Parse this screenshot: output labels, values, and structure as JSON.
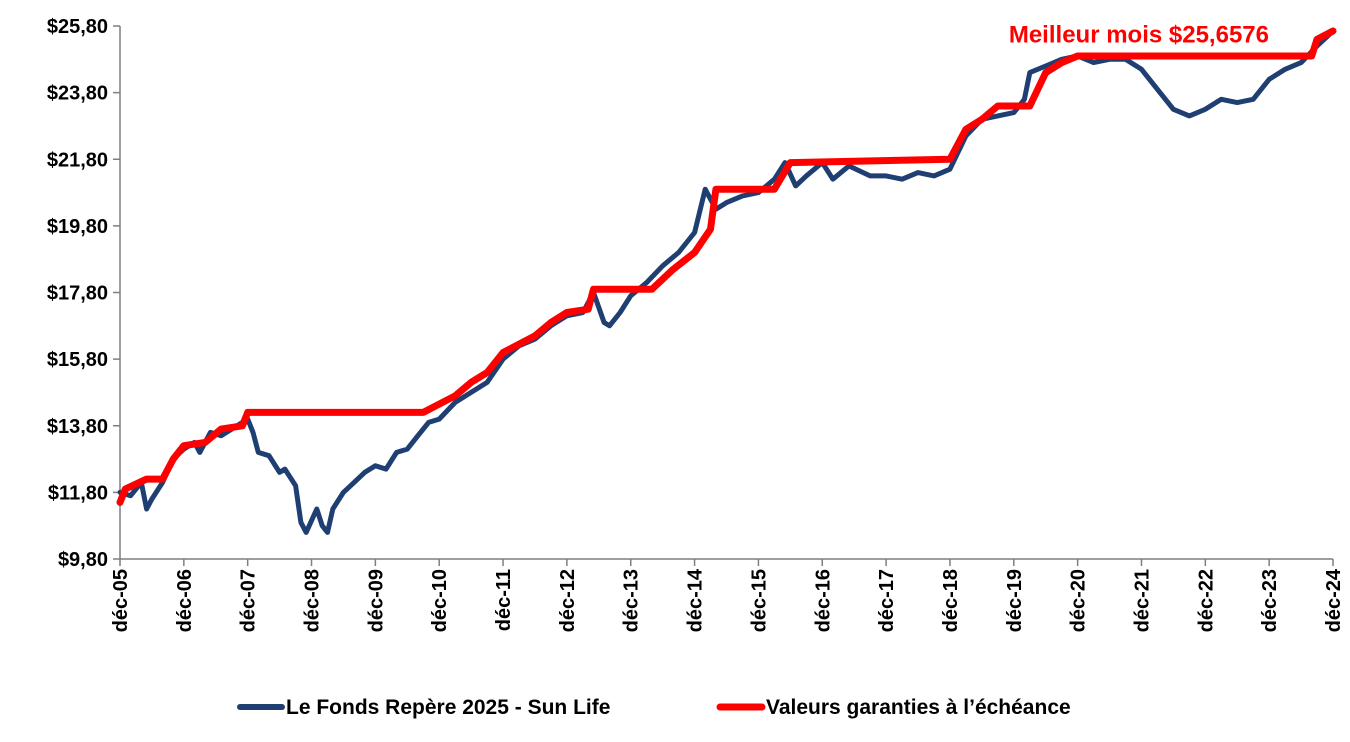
{
  "chart_data": {
    "type": "line",
    "title": "",
    "xlabel": "",
    "ylabel": "",
    "ylim": [
      9.8,
      25.8
    ],
    "xlim": [
      "2005-12",
      "2024-12"
    ],
    "y_ticks": [
      "$9,80",
      "$11,80",
      "$13,80",
      "$15,80",
      "$17,80",
      "$19,80",
      "$21,80",
      "$23,80",
      "$25,80"
    ],
    "y_tick_values": [
      9.8,
      11.8,
      13.8,
      15.8,
      17.8,
      19.8,
      21.8,
      23.8,
      25.8
    ],
    "x_ticks": [
      "déc-05",
      "déc-06",
      "déc-07",
      "déc-08",
      "déc-09",
      "déc-10",
      "déc-11",
      "déc-12",
      "déc-13",
      "déc-14",
      "déc-15",
      "déc-16",
      "déc-17",
      "déc-18",
      "déc-19",
      "déc-20",
      "déc-21",
      "déc-22",
      "déc-23",
      "déc-24"
    ],
    "grid": false,
    "legend_position": "bottom",
    "colors": {
      "fund": "#1f3f73",
      "guaranteed": "#ff0000",
      "annotation": "#ff0000"
    },
    "annotation": {
      "text": "Meilleur mois $25,6576",
      "x": "2024-12",
      "y": 25.6576
    },
    "series": [
      {
        "name": "Le Fonds Repère 2025 - Sun Life",
        "color": "#1f3f73",
        "points": [
          [
            "2005-12",
            11.8
          ],
          [
            "2006-02",
            11.7
          ],
          [
            "2006-04",
            12.1
          ],
          [
            "2006-05",
            11.3
          ],
          [
            "2006-06",
            11.6
          ],
          [
            "2006-08",
            12.1
          ],
          [
            "2006-10",
            12.8
          ],
          [
            "2006-12",
            13.1
          ],
          [
            "2007-02",
            13.3
          ],
          [
            "2007-03",
            13.0
          ],
          [
            "2007-05",
            13.6
          ],
          [
            "2007-07",
            13.5
          ],
          [
            "2007-09",
            13.7
          ],
          [
            "2007-11",
            13.9
          ],
          [
            "2007-12",
            14.0
          ],
          [
            "2008-01",
            13.6
          ],
          [
            "2008-02",
            13.0
          ],
          [
            "2008-04",
            12.9
          ],
          [
            "2008-06",
            12.4
          ],
          [
            "2008-07",
            12.5
          ],
          [
            "2008-09",
            12.0
          ],
          [
            "2008-10",
            10.9
          ],
          [
            "2008-11",
            10.6
          ],
          [
            "2009-01",
            11.3
          ],
          [
            "2009-02",
            10.8
          ],
          [
            "2009-03",
            10.6
          ],
          [
            "2009-04",
            11.3
          ],
          [
            "2009-06",
            11.8
          ],
          [
            "2009-08",
            12.1
          ],
          [
            "2009-10",
            12.4
          ],
          [
            "2009-12",
            12.6
          ],
          [
            "2010-02",
            12.5
          ],
          [
            "2010-04",
            13.0
          ],
          [
            "2010-06",
            13.1
          ],
          [
            "2010-08",
            13.5
          ],
          [
            "2010-10",
            13.9
          ],
          [
            "2010-12",
            14.0
          ],
          [
            "2011-03",
            14.5
          ],
          [
            "2011-06",
            14.8
          ],
          [
            "2011-09",
            15.1
          ],
          [
            "2011-12",
            15.8
          ],
          [
            "2012-03",
            16.2
          ],
          [
            "2012-06",
            16.4
          ],
          [
            "2012-09",
            16.8
          ],
          [
            "2012-12",
            17.1
          ],
          [
            "2013-03",
            17.2
          ],
          [
            "2013-05",
            17.8
          ],
          [
            "2013-07",
            16.9
          ],
          [
            "2013-08",
            16.8
          ],
          [
            "2013-10",
            17.2
          ],
          [
            "2013-12",
            17.7
          ],
          [
            "2014-03",
            18.1
          ],
          [
            "2014-06",
            18.6
          ],
          [
            "2014-09",
            19.0
          ],
          [
            "2014-12",
            19.6
          ],
          [
            "2015-02",
            20.9
          ],
          [
            "2015-04",
            20.3
          ],
          [
            "2015-06",
            20.5
          ],
          [
            "2015-09",
            20.7
          ],
          [
            "2015-12",
            20.8
          ],
          [
            "2016-03",
            21.2
          ],
          [
            "2016-05",
            21.7
          ],
          [
            "2016-07",
            21.0
          ],
          [
            "2016-09",
            21.3
          ],
          [
            "2016-12",
            21.7
          ],
          [
            "2017-02",
            21.2
          ],
          [
            "2017-05",
            21.6
          ],
          [
            "2017-09",
            21.3
          ],
          [
            "2017-12",
            21.3
          ],
          [
            "2018-03",
            21.2
          ],
          [
            "2018-06",
            21.4
          ],
          [
            "2018-09",
            21.3
          ],
          [
            "2018-12",
            21.5
          ],
          [
            "2019-03",
            22.5
          ],
          [
            "2019-06",
            23.0
          ],
          [
            "2019-09",
            23.1
          ],
          [
            "2019-12",
            23.2
          ],
          [
            "2020-02",
            23.6
          ],
          [
            "2020-03",
            24.4
          ],
          [
            "2020-06",
            24.6
          ],
          [
            "2020-09",
            24.8
          ],
          [
            "2020-12",
            24.9
          ],
          [
            "2021-03",
            24.7
          ],
          [
            "2021-06",
            24.8
          ],
          [
            "2021-09",
            24.8
          ],
          [
            "2021-12",
            24.5
          ],
          [
            "2022-03",
            23.9
          ],
          [
            "2022-06",
            23.3
          ],
          [
            "2022-09",
            23.1
          ],
          [
            "2022-12",
            23.3
          ],
          [
            "2023-03",
            23.6
          ],
          [
            "2023-06",
            23.5
          ],
          [
            "2023-09",
            23.6
          ],
          [
            "2023-12",
            24.2
          ],
          [
            "2024-03",
            24.5
          ],
          [
            "2024-06",
            24.7
          ],
          [
            "2024-09",
            25.2
          ],
          [
            "2024-12",
            25.65
          ]
        ]
      },
      {
        "name": "Valeurs garanties à l’échéance",
        "color": "#ff0000",
        "points": [
          [
            "2005-12",
            11.5
          ],
          [
            "2006-01",
            11.9
          ],
          [
            "2006-05",
            12.2
          ],
          [
            "2006-08",
            12.2
          ],
          [
            "2006-10",
            12.8
          ],
          [
            "2006-12",
            13.2
          ],
          [
            "2007-04",
            13.3
          ],
          [
            "2007-07",
            13.7
          ],
          [
            "2007-11",
            13.8
          ],
          [
            "2007-12",
            14.2
          ],
          [
            "2010-09",
            14.2
          ],
          [
            "2011-03",
            14.7
          ],
          [
            "2011-06",
            15.1
          ],
          [
            "2011-09",
            15.4
          ],
          [
            "2011-12",
            16.0
          ],
          [
            "2012-06",
            16.5
          ],
          [
            "2012-09",
            16.9
          ],
          [
            "2012-12",
            17.2
          ],
          [
            "2013-04",
            17.3
          ],
          [
            "2013-05",
            17.9
          ],
          [
            "2014-04",
            17.9
          ],
          [
            "2014-08",
            18.5
          ],
          [
            "2014-12",
            19.0
          ],
          [
            "2015-03",
            19.7
          ],
          [
            "2015-04",
            20.9
          ],
          [
            "2016-03",
            20.9
          ],
          [
            "2016-06",
            21.7
          ],
          [
            "2018-12",
            21.8
          ],
          [
            "2019-03",
            22.7
          ],
          [
            "2019-06",
            23.0
          ],
          [
            "2019-09",
            23.4
          ],
          [
            "2020-03",
            23.4
          ],
          [
            "2020-06",
            24.4
          ],
          [
            "2020-09",
            24.7
          ],
          [
            "2020-12",
            24.9
          ],
          [
            "2024-08",
            24.9
          ],
          [
            "2024-09",
            25.4
          ],
          [
            "2024-12",
            25.65
          ]
        ]
      }
    ]
  }
}
